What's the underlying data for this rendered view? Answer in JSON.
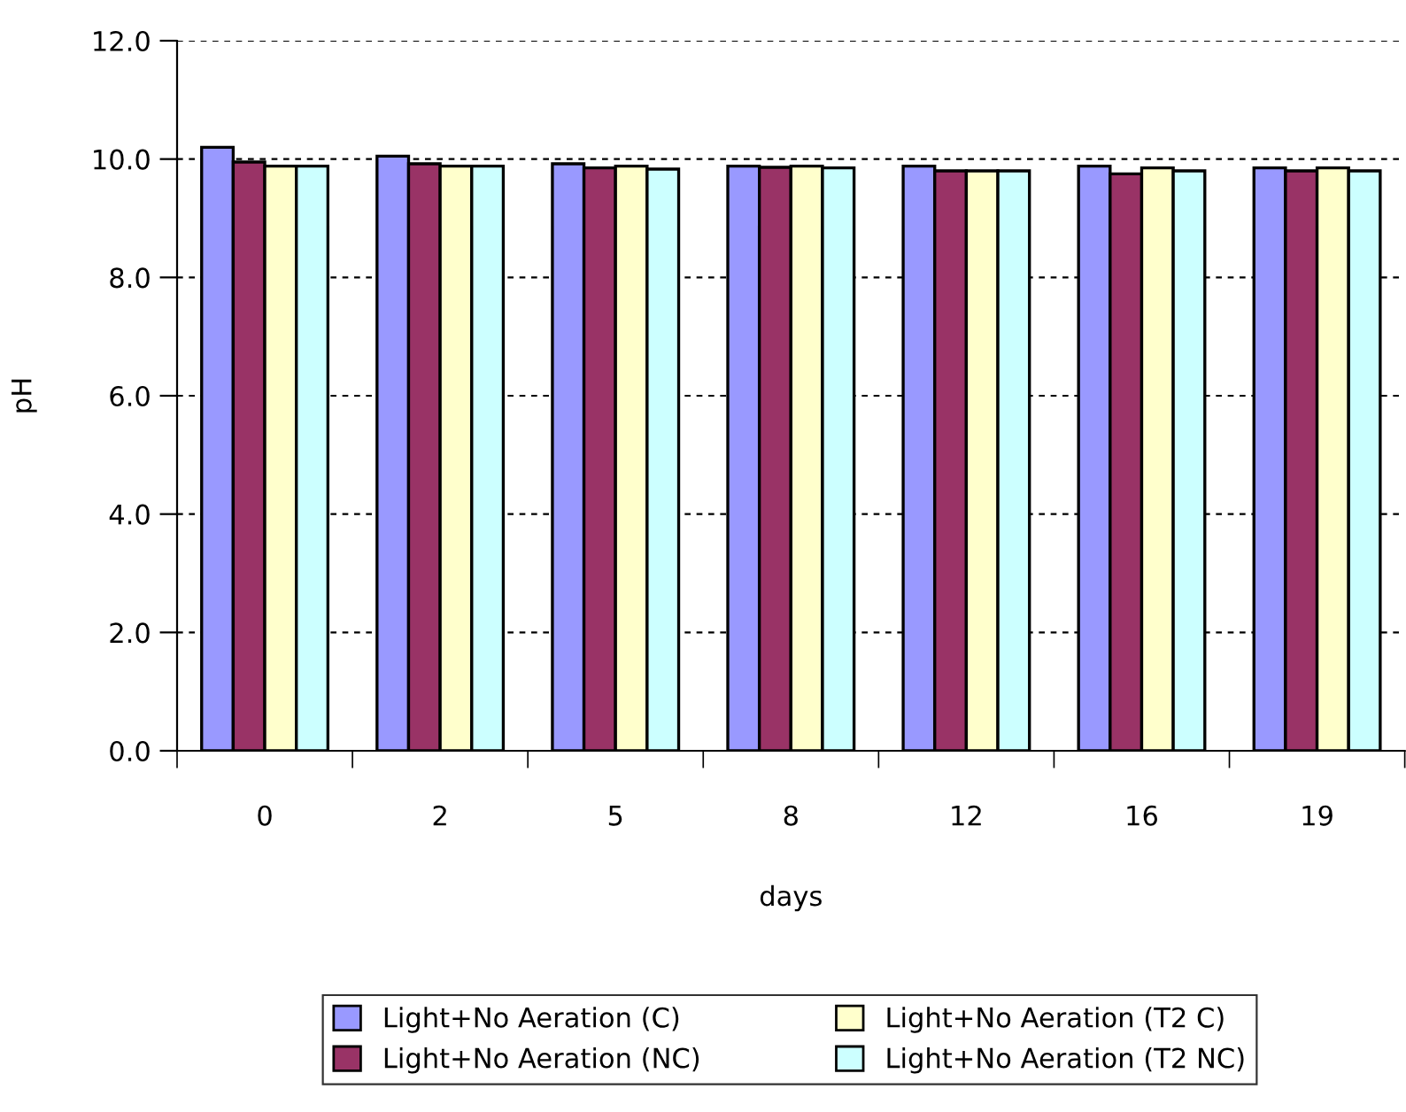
{
  "chart_data": {
    "type": "bar",
    "xlabel": "days",
    "ylabel": "pH",
    "categories": [
      "0",
      "2",
      "5",
      "8",
      "12",
      "16",
      "19"
    ],
    "series": [
      {
        "name": "Light+No Aeration (C)",
        "color": "#9999ff",
        "values": [
          10.2,
          10.05,
          9.92,
          9.88,
          9.88,
          9.88,
          9.85
        ]
      },
      {
        "name": "Light+No Aeration (NC)",
        "color": "#993366",
        "values": [
          9.95,
          9.92,
          9.85,
          9.86,
          9.8,
          9.75,
          9.8
        ]
      },
      {
        "name": "Light+No Aeration (T2 C)",
        "color": "#ffffcc",
        "values": [
          9.88,
          9.88,
          9.88,
          9.88,
          9.8,
          9.85,
          9.85
        ]
      },
      {
        "name": "Light+No Aeration (T2 NC)",
        "color": "#ccffff",
        "values": [
          9.88,
          9.88,
          9.83,
          9.85,
          9.8,
          9.8,
          9.8
        ]
      }
    ],
    "ylim": [
      0,
      12
    ],
    "yticks": [
      {
        "value": 0,
        "label": "0.0"
      },
      {
        "value": 2,
        "label": "2.0"
      },
      {
        "value": 4,
        "label": "4.0"
      },
      {
        "value": 6,
        "label": "6.0"
      },
      {
        "value": 8,
        "label": "8.0"
      },
      {
        "value": 10,
        "label": "10.0"
      },
      {
        "value": 12,
        "label": "12.0"
      }
    ],
    "grid": "y",
    "legend": "bottom"
  }
}
